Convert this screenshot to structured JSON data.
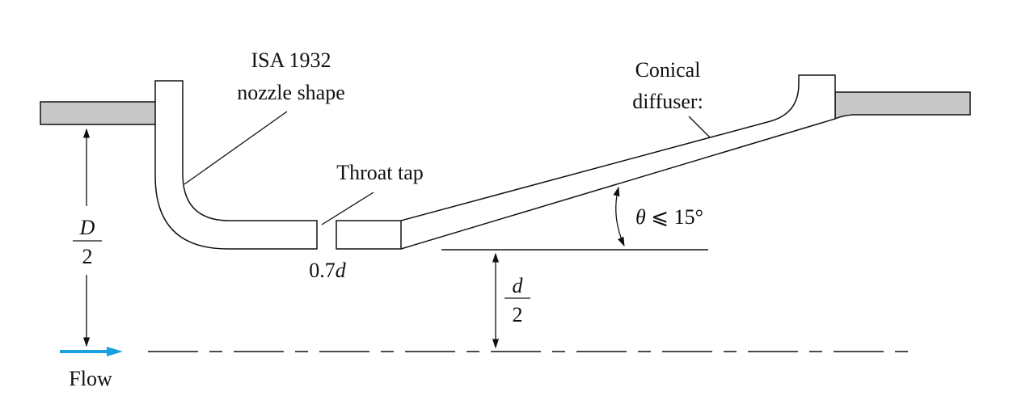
{
  "labels": {
    "nozzle_line1": "ISA 1932",
    "nozzle_line2": "nozzle shape",
    "diffuser_line1": "Conical",
    "diffuser_line2": "diffuser:",
    "throat_tap": "Throat tap",
    "angle_theta": "θ",
    "angle_rest": " ⩽ 15°",
    "throat_size_num": "0.7",
    "throat_size_var": "d",
    "pipe_D_num": "D",
    "pipe_D_den": "2",
    "throat_d_num": "d",
    "throat_d_den": "2",
    "flow": "Flow"
  },
  "colors": {
    "pipe_wall_fill": "#c8c8c8",
    "line": "#111111",
    "flow_arrow": "#1aa0e0"
  }
}
